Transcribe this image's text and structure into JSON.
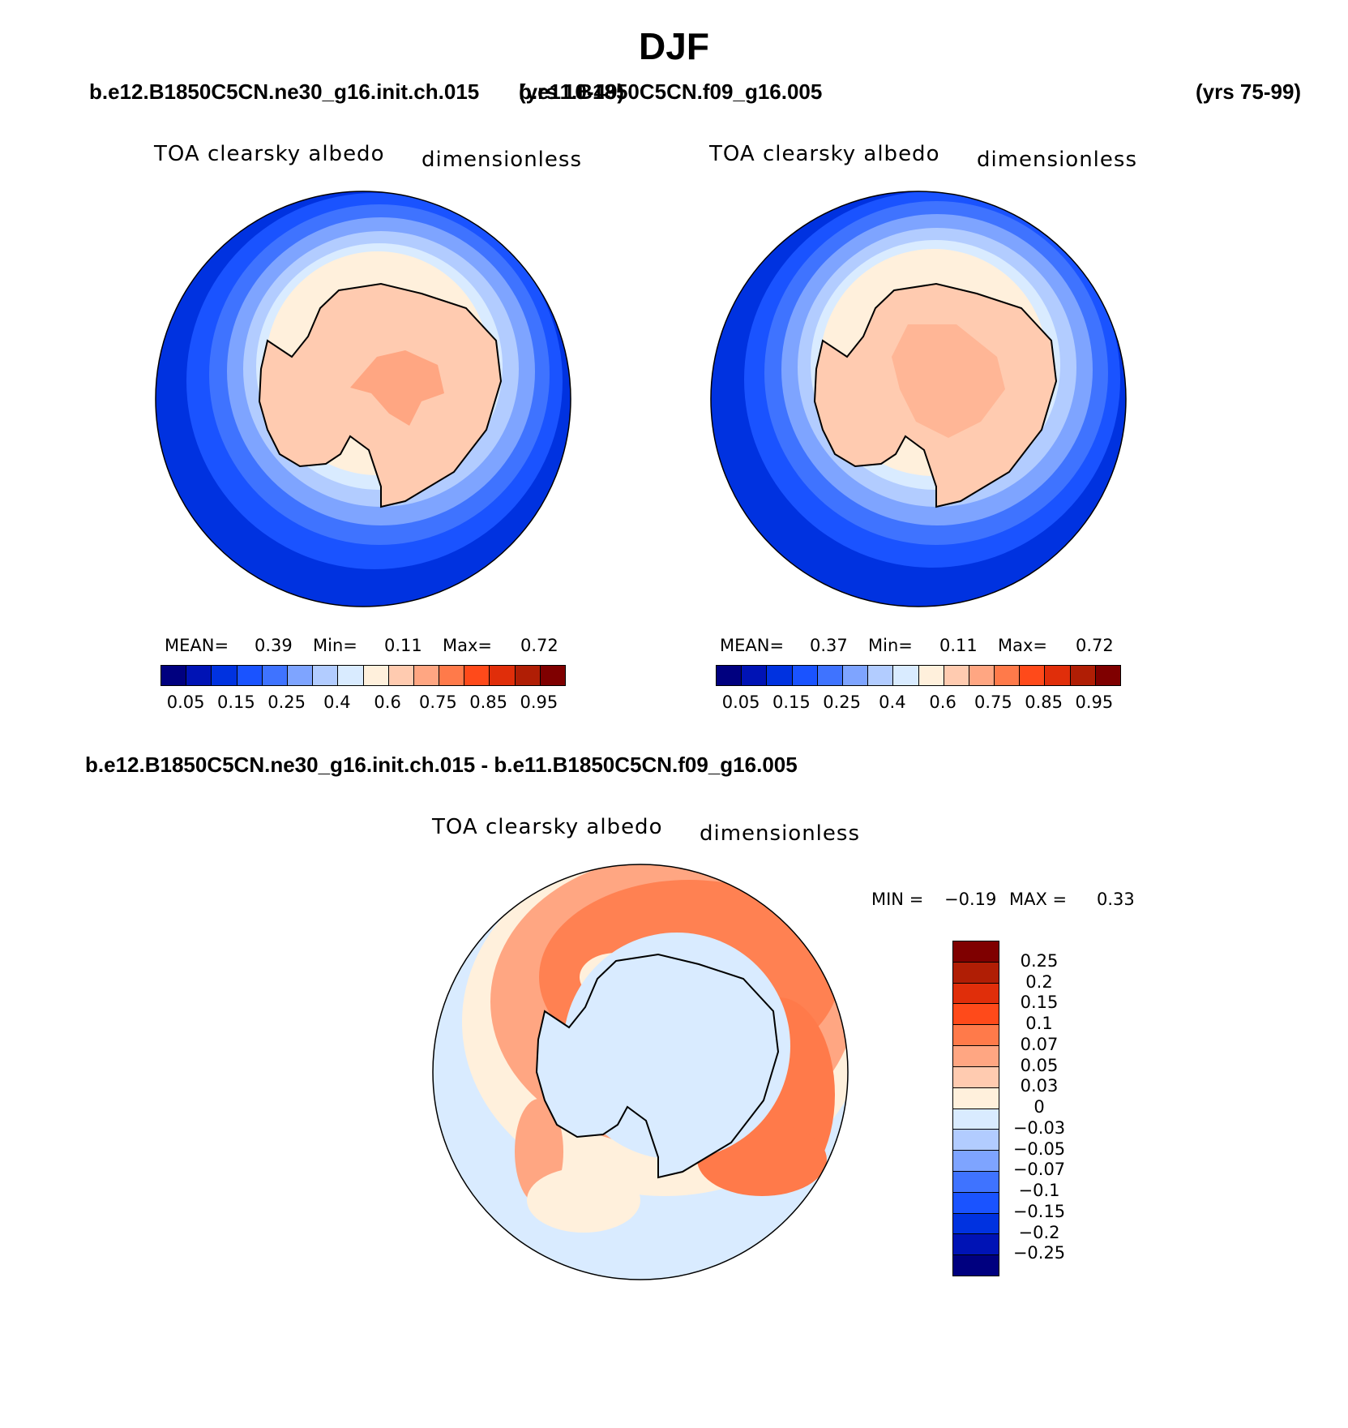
{
  "season": "DJF",
  "case_test": "b.e12.B1850C5CN.ne30_g16.init.ch.015",
  "case_test_years": "(yrs 10-49)",
  "case_control": "b.e11.B1850C5CN.f09_g16.005",
  "case_control_years": "(yrs 75-99)",
  "diff_title": "b.e12.B1850C5CN.ne30_g16.init.ch.015 - b.e11.B1850C5CN.f09_g16.005",
  "variable": "TOA clearsky albedo",
  "units": "dimensionless",
  "panels": [
    {
      "mean_label": "MEAN=",
      "mean": "0.39",
      "min_label": "Min=",
      "min": "0.11",
      "max_label": "Max=",
      "max": "0.72"
    },
    {
      "mean_label": "MEAN=",
      "mean": "0.37",
      "min_label": "Min=",
      "min": "0.11",
      "max_label": "Max=",
      "max": "0.72"
    }
  ],
  "diff_stats": {
    "min_label": "MIN =",
    "min": "−0.19",
    "max_label": "MAX =",
    "max": "0.33"
  },
  "colorbar_main": {
    "colors": [
      "#00007f",
      "#0013b5",
      "#0032e0",
      "#1a53ff",
      "#3f73ff",
      "#7ea4ff",
      "#b2ccff",
      "#d9ebff",
      "#fff0dc",
      "#ffcbb0",
      "#ffa682",
      "#ff7a4a",
      "#ff4a1a",
      "#e02e0a",
      "#b01e05",
      "#7f0000"
    ],
    "labels": [
      "0.05",
      "0.15",
      "0.25",
      "0.4",
      "0.6",
      "0.75",
      "0.85",
      "0.95"
    ]
  },
  "colorbar_diff": {
    "colors": [
      "#7f0000",
      "#b01e05",
      "#e02e0a",
      "#ff4a1a",
      "#ff7a4a",
      "#ffa682",
      "#ffcbb0",
      "#fff0dc",
      "#d9ebff",
      "#b2ccff",
      "#7ea4ff",
      "#3f73ff",
      "#1a53ff",
      "#0032e0",
      "#0013b5",
      "#00007f"
    ],
    "labels": [
      "0.25",
      "0.2",
      "0.15",
      "0.1",
      "0.07",
      "0.05",
      "0.03",
      "0",
      "−0.03",
      "−0.05",
      "−0.07",
      "−0.1",
      "−0.15",
      "−0.2",
      "−0.25"
    ]
  }
}
